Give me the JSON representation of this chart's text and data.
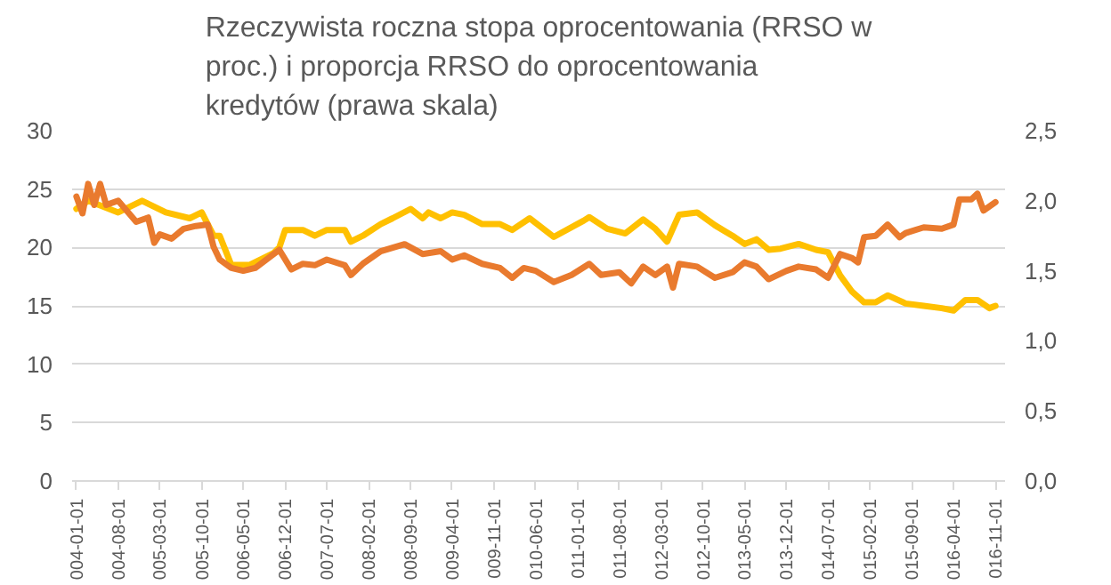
{
  "chart_data": {
    "type": "line",
    "title": "Rzeczywista roczna stopa oprocentowania (RRSO w proc.) i proporcja RRSO do oprocentowania kredytów (prawa skala)",
    "xlim": [
      "2003-12-10",
      "2016-12-20"
    ],
    "xticks": [
      {
        "value": "2004-01-01",
        "label": "004-01-01"
      },
      {
        "value": "2004-08-01",
        "label": "004-08-01"
      },
      {
        "value": "2005-03-01",
        "label": "005-03-01"
      },
      {
        "value": "2005-10-01",
        "label": "005-10-01"
      },
      {
        "value": "2006-05-01",
        "label": "006-05-01"
      },
      {
        "value": "2006-12-01",
        "label": "006-12-01"
      },
      {
        "value": "2007-07-01",
        "label": "007-07-01"
      },
      {
        "value": "2008-02-01",
        "label": "008-02-01"
      },
      {
        "value": "2008-09-01",
        "label": "008-09-01"
      },
      {
        "value": "2009-04-01",
        "label": "009-04-01"
      },
      {
        "value": "2009-11-01",
        "label": "009-11-01"
      },
      {
        "value": "2010-06-01",
        "label": "010-06-01"
      },
      {
        "value": "2011-01-01",
        "label": "011-01-01"
      },
      {
        "value": "2011-08-01",
        "label": "011-08-01"
      },
      {
        "value": "2012-03-01",
        "label": "012-03-01"
      },
      {
        "value": "2012-10-01",
        "label": "012-10-01"
      },
      {
        "value": "2013-05-01",
        "label": "013-05-01"
      },
      {
        "value": "2013-12-01",
        "label": "013-12-01"
      },
      {
        "value": "2014-07-01",
        "label": "014-07-01"
      },
      {
        "value": "2015-02-01",
        "label": "015-02-01"
      },
      {
        "value": "2015-09-01",
        "label": "015-09-01"
      },
      {
        "value": "2016-04-01",
        "label": "016-04-01"
      },
      {
        "value": "2016-11-01",
        "label": "016-11-01"
      }
    ],
    "ylim": [
      0,
      30
    ],
    "yticks": [
      0,
      5,
      10,
      15,
      20,
      25,
      30
    ],
    "y2lim": [
      0,
      2.5
    ],
    "y2ticks": [
      {
        "value": 0,
        "label": "0,0"
      },
      {
        "value": 0.5,
        "label": "0,5"
      },
      {
        "value": 1,
        "label": "1,0"
      },
      {
        "value": 1.5,
        "label": "1,5"
      },
      {
        "value": 2,
        "label": "2,0"
      },
      {
        "value": 2.5,
        "label": "2,5"
      }
    ],
    "grid": "y",
    "line_style": "solid",
    "marker": "none",
    "series": [
      {
        "color": "#ffc000",
        "x": [
          "2004-01",
          "2004-03",
          "2004-08",
          "2004-12",
          "2005-04",
          "2005-08",
          "2005-10",
          "2005-12",
          "2006-01",
          "2006-03",
          "2006-06",
          "2006-10",
          "2006-11",
          "2006-12",
          "2007-03",
          "2007-05",
          "2007-07",
          "2007-10",
          "2007-11",
          "2008-01",
          "2008-04",
          "2008-06",
          "2008-09",
          "2008-11",
          "2008-12",
          "2009-02",
          "2009-04",
          "2009-06",
          "2009-09",
          "2009-12",
          "2010-02",
          "2010-05",
          "2010-09",
          "2011-02",
          "2011-03",
          "2011-06",
          "2011-09",
          "2011-12",
          "2012-02",
          "2012-04",
          "2012-06",
          "2012-09",
          "2012-12",
          "2013-03",
          "2013-05",
          "2013-07",
          "2013-09",
          "2013-11",
          "2014-02",
          "2014-05",
          "2014-07",
          "2014-09",
          "2014-11",
          "2015-01",
          "2015-03",
          "2015-05",
          "2015-08",
          "2015-11",
          "2016-02",
          "2016-04",
          "2016-06",
          "2016-08",
          "2016-10",
          "2016-11"
        ],
        "values": [
          23.3,
          24,
          23,
          24,
          23,
          22.5,
          23,
          21,
          21,
          18.5,
          18.5,
          19.5,
          20,
          21.5,
          21.5,
          21,
          21.5,
          21.5,
          20.5,
          21,
          22,
          22.5,
          23.3,
          22.5,
          23,
          22.5,
          23,
          22.8,
          22,
          22,
          21.5,
          22.5,
          20.9,
          22.3,
          22.6,
          21.6,
          21.2,
          22.4,
          21.6,
          20.5,
          22.8,
          23,
          21.9,
          21,
          20.3,
          20.7,
          19.8,
          19.9,
          20.3,
          19.8,
          19.6,
          17.6,
          16.2,
          15.3,
          15.3,
          15.9,
          15.2,
          15,
          14.8,
          14.6,
          15.5,
          15.5,
          14.8,
          15
        ]
      },
      {
        "color": "#e97a2e",
        "axis": "y2",
        "x": [
          "2004-01",
          "2004-02",
          "2004-03",
          "2004-04",
          "2004-05",
          "2004-06",
          "2004-08",
          "2004-11",
          "2005-01",
          "2005-02",
          "2005-03",
          "2005-05",
          "2005-07",
          "2005-09",
          "2005-11",
          "2005-12",
          "2006-01",
          "2006-03",
          "2006-05",
          "2006-07",
          "2006-11",
          "2007-01",
          "2007-03",
          "2007-05",
          "2007-07",
          "2007-10",
          "2007-11",
          "2008-01",
          "2008-04",
          "2008-08",
          "2008-11",
          "2009-02",
          "2009-04",
          "2009-06",
          "2009-09",
          "2009-12",
          "2010-02",
          "2010-04",
          "2010-06",
          "2010-09",
          "2010-12",
          "2011-03",
          "2011-05",
          "2011-08",
          "2011-10",
          "2011-12",
          "2012-02",
          "2012-04",
          "2012-05",
          "2012-06",
          "2012-09",
          "2012-12",
          "2013-03",
          "2013-05",
          "2013-07",
          "2013-09",
          "2013-12",
          "2014-02",
          "2014-05",
          "2014-07",
          "2014-09",
          "2014-11",
          "2014-12",
          "2015-01",
          "2015-03",
          "2015-05",
          "2015-07",
          "2015-08",
          "2015-11",
          "2016-02",
          "2016-04",
          "2016-05",
          "2016-07",
          "2016-08",
          "2016-09",
          "2016-11"
        ],
        "values": [
          2.03,
          1.91,
          2.12,
          1.97,
          2.12,
          1.97,
          2.0,
          1.85,
          1.88,
          1.7,
          1.76,
          1.73,
          1.8,
          1.82,
          1.83,
          1.67,
          1.58,
          1.52,
          1.5,
          1.52,
          1.65,
          1.51,
          1.55,
          1.54,
          1.58,
          1.54,
          1.47,
          1.55,
          1.64,
          1.69,
          1.62,
          1.64,
          1.58,
          1.61,
          1.55,
          1.52,
          1.45,
          1.52,
          1.5,
          1.42,
          1.47,
          1.55,
          1.47,
          1.49,
          1.41,
          1.53,
          1.47,
          1.53,
          1.38,
          1.55,
          1.53,
          1.45,
          1.49,
          1.56,
          1.53,
          1.44,
          1.5,
          1.53,
          1.51,
          1.45,
          1.62,
          1.59,
          1.56,
          1.74,
          1.75,
          1.83,
          1.74,
          1.77,
          1.81,
          1.8,
          1.83,
          2.01,
          2.01,
          2.05,
          1.93,
          1.99
        ]
      }
    ]
  }
}
